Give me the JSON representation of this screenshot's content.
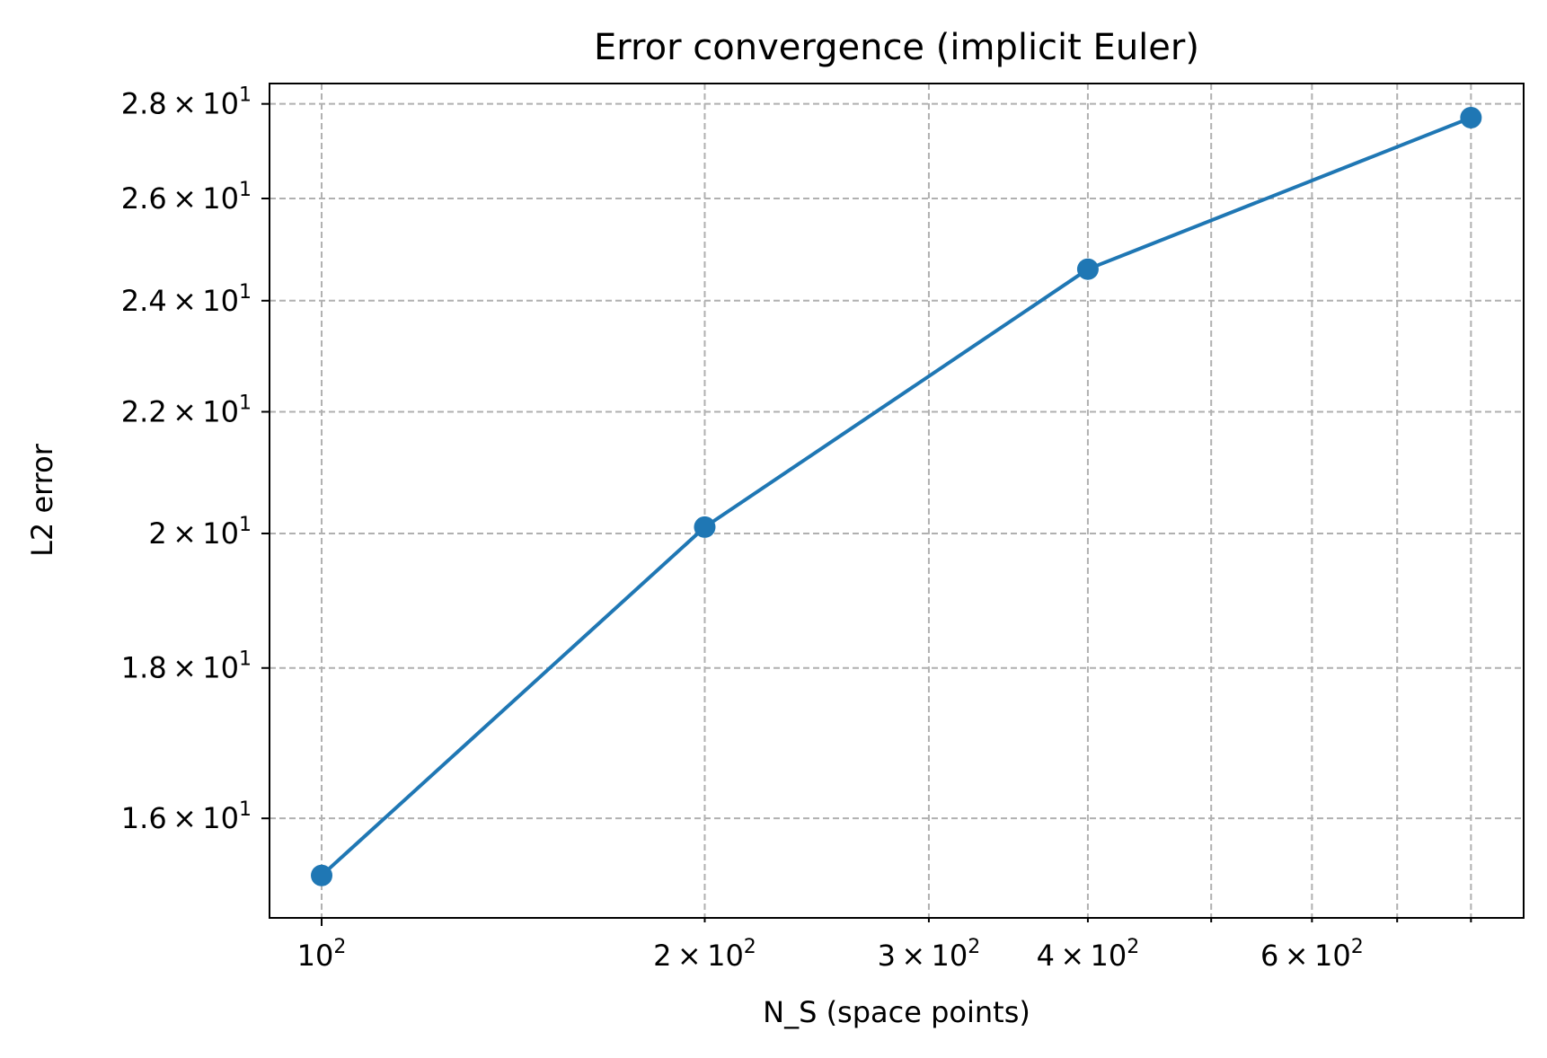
{
  "chart_data": {
    "type": "line",
    "title": "Error convergence (implicit Euler)",
    "xlabel": "N_S (space points)",
    "ylabel": "L2 error",
    "xscale": "log",
    "yscale": "log",
    "xlim": [
      91,
      880
    ],
    "ylim": [
      14.8,
      28.45
    ],
    "grid": true,
    "grid_style": "dashed",
    "legend": "none",
    "x": [
      100,
      200,
      400,
      800
    ],
    "series": [
      {
        "name": "",
        "values": [
          15.3,
          20.1,
          24.6,
          27.7
        ],
        "color": "#1f77b4",
        "marker": "circle"
      }
    ],
    "x_major_ticks": [
      {
        "value": 100,
        "mantissa": "",
        "base": "10",
        "exp": "2"
      }
    ],
    "x_minor_ticks": [
      {
        "value": 200,
        "mantissa": "2",
        "base": "10",
        "exp": "2"
      },
      {
        "value": 300,
        "mantissa": "3",
        "base": "10",
        "exp": "2"
      },
      {
        "value": 400,
        "mantissa": "4",
        "base": "10",
        "exp": "2"
      },
      {
        "value": 500,
        "mantissa": "",
        "base": "",
        "exp": ""
      },
      {
        "value": 600,
        "mantissa": "6",
        "base": "10",
        "exp": "2"
      },
      {
        "value": 700,
        "mantissa": "",
        "base": "",
        "exp": ""
      },
      {
        "value": 800,
        "mantissa": "",
        "base": "",
        "exp": ""
      }
    ],
    "y_ticks": [
      {
        "value": 16,
        "mantissa": "1.6",
        "base": "10",
        "exp": "1"
      },
      {
        "value": 18,
        "mantissa": "1.8",
        "base": "10",
        "exp": "1"
      },
      {
        "value": 20,
        "mantissa": "2",
        "base": "10",
        "exp": "1"
      },
      {
        "value": 22,
        "mantissa": "2.2",
        "base": "10",
        "exp": "1"
      },
      {
        "value": 24,
        "mantissa": "2.4",
        "base": "10",
        "exp": "1"
      },
      {
        "value": 26,
        "mantissa": "2.6",
        "base": "10",
        "exp": "1"
      },
      {
        "value": 28,
        "mantissa": "2.8",
        "base": "10",
        "exp": "1"
      }
    ],
    "colors": {
      "line": "#1f77b4",
      "grid": "#b0b0b0",
      "axes": "#000000",
      "background": "#ffffff"
    }
  }
}
